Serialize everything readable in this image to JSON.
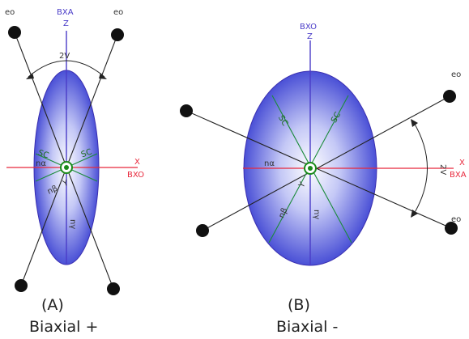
{
  "colors": {
    "z_axis": "#4a3cc8",
    "x_axis": "#e8283c",
    "optic_axis": "#222222",
    "section_line": "#1a8a3a",
    "ellipsoid_edge": "#3a2fb0",
    "origin": "#1a8a1a"
  },
  "panel_a": {
    "top_left_label": "eo",
    "top_right_label": "eo",
    "bxa_label": "BXA",
    "z_label": "Z",
    "angle_label": "2V",
    "x_label": "X",
    "bxo_label": "BXO",
    "sc_left_label": "SC",
    "sc_right_label": "SC",
    "n_alpha_label": "nα",
    "n_beta_label": "nβ",
    "y_label": "Y",
    "n_gamma_label": "nγ",
    "caption_letter": "(A)",
    "caption_name": "Biaxial +"
  },
  "panel_b": {
    "bxo_label": "BXO",
    "z_label": "Z",
    "sc_left_label": "SC",
    "sc_right_label": "SC",
    "n_alpha_label": "nα",
    "n_beta_label": "nβ",
    "y_label": "Y",
    "n_gamma_label": "nγ",
    "x_label": "X",
    "bxa_label": "BXA",
    "angle_label": "2V",
    "top_right_label": "eo",
    "bottom_right_label": "eo",
    "caption_letter": "(B)",
    "caption_name": "Biaxial -"
  }
}
